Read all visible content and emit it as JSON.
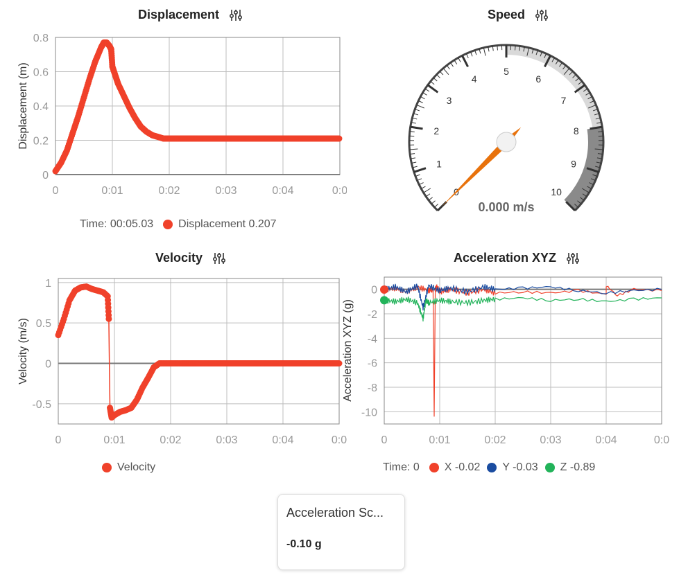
{
  "displacement": {
    "title": "Displacement",
    "legend_time": "Time: 00:05.03",
    "legend_series": "Displacement 0.207",
    "color": "#f0412a",
    "chart_data": {
      "type": "scatter",
      "ylabel": "Displacement (m)",
      "xlim": [
        0,
        0.05
      ],
      "ylim": [
        0,
        0.8
      ],
      "xticks": [
        "0",
        "0:01",
        "0:02",
        "0:03",
        "0:04",
        "0:0"
      ],
      "yticks": [
        "0",
        "0.2",
        "0.4",
        "0.6",
        "0.8"
      ],
      "grid": true,
      "x": [
        0,
        0.001,
        0.002,
        0.003,
        0.004,
        0.005,
        0.006,
        0.007,
        0.008,
        0.0085,
        0.009,
        0.0095,
        0.0098,
        0.01,
        0.0105,
        0.011,
        0.012,
        0.013,
        0.014,
        0.015,
        0.016,
        0.017,
        0.018,
        0.019,
        0.02,
        0.021,
        0.022,
        0.025,
        0.03,
        0.035,
        0.04,
        0.045,
        0.05
      ],
      "y": [
        0.02,
        0.07,
        0.14,
        0.24,
        0.34,
        0.45,
        0.56,
        0.66,
        0.74,
        0.77,
        0.77,
        0.75,
        0.73,
        0.63,
        0.58,
        0.53,
        0.46,
        0.39,
        0.33,
        0.28,
        0.25,
        0.23,
        0.22,
        0.21,
        0.21,
        0.21,
        0.21,
        0.21,
        0.21,
        0.21,
        0.21,
        0.21,
        0.21
      ]
    }
  },
  "speed": {
    "title": "Speed",
    "value_text": "0.000 m/s",
    "value": 0,
    "min": 0,
    "max": 10,
    "tick_labels": [
      "0",
      "1",
      "2",
      "3",
      "4",
      "5",
      "6",
      "7",
      "8",
      "9",
      "10"
    ],
    "needle_color": "#e8720c",
    "bands": [
      {
        "from": 5,
        "to": 8,
        "color": "#d9d9d9"
      },
      {
        "from": 8,
        "to": 10,
        "color": "#8a8a8a"
      }
    ]
  },
  "velocity": {
    "title": "Velocity",
    "legend_series": "Velocity",
    "color": "#f0412a",
    "chart_data": {
      "type": "scatter",
      "ylabel": "Velocity (m/s)",
      "xlim": [
        0,
        0.05
      ],
      "ylim": [
        -0.75,
        1.05
      ],
      "xticks": [
        "0",
        "0:01",
        "0:02",
        "0:03",
        "0:04",
        "0:0"
      ],
      "yticks": [
        "-0.5",
        "0",
        "0.5",
        "1"
      ],
      "grid": true,
      "x": [
        0,
        0.001,
        0.002,
        0.003,
        0.004,
        0.005,
        0.006,
        0.007,
        0.008,
        0.0088,
        0.009,
        0.0092,
        0.0095,
        0.01,
        0.011,
        0.012,
        0.013,
        0.014,
        0.015,
        0.016,
        0.017,
        0.018,
        0.019,
        0.02,
        0.021,
        0.022,
        0.025,
        0.03,
        0.035,
        0.04,
        0.045,
        0.05
      ],
      "y": [
        0.35,
        0.55,
        0.78,
        0.9,
        0.94,
        0.95,
        0.92,
        0.9,
        0.88,
        0.83,
        0.55,
        -0.55,
        -0.67,
        -0.64,
        -0.6,
        -0.58,
        -0.55,
        -0.45,
        -0.3,
        -0.18,
        -0.05,
        0,
        0,
        0,
        0,
        0,
        0,
        0,
        0,
        0,
        0,
        0
      ]
    }
  },
  "acceleration": {
    "title": "Acceleration XYZ",
    "legend_time": "Time: 0",
    "legend_x": "X -0.02",
    "legend_y": "Y -0.03",
    "legend_z": "Z -0.89",
    "chart_data": {
      "type": "line",
      "ylabel": "Acceleration XYZ (g)",
      "xlim": [
        0,
        0.05
      ],
      "ylim": [
        -11,
        1
      ],
      "xticks": [
        "0",
        "0:01",
        "0:02",
        "0:03",
        "0:04",
        "0:0"
      ],
      "yticks": [
        "0",
        "-2",
        "-4",
        "-6",
        "-8",
        "-10"
      ],
      "grid": true,
      "series": [
        {
          "name": "X",
          "color": "#f0412a",
          "x": [
            0,
            0.002,
            0.004,
            0.006,
            0.008,
            0.0088,
            0.009,
            0.0092,
            0.0095,
            0.01,
            0.012,
            0.015,
            0.018,
            0.02,
            0.025,
            0.03,
            0.035,
            0.04,
            0.04,
            0.042,
            0.045,
            0.05
          ],
          "y": [
            -0.02,
            0.1,
            -0.2,
            0.2,
            -0.1,
            0,
            -10.4,
            0,
            0.2,
            -0.2,
            0,
            -0.3,
            0,
            -0.3,
            -0.2,
            -0.3,
            -0.1,
            -0.4,
            0.3,
            -0.5,
            0,
            -0.1
          ]
        },
        {
          "name": "Y",
          "color": "#1a4ca0",
          "x": [
            0,
            0.002,
            0.004,
            0.006,
            0.007,
            0.008,
            0.01,
            0.012,
            0.015,
            0.018,
            0.02,
            0.025,
            0.03,
            0.035,
            0.04,
            0.045,
            0.05
          ],
          "y": [
            -0.03,
            0.2,
            -0.2,
            0.3,
            -1.5,
            0.3,
            -0.1,
            0.1,
            -0.2,
            0.2,
            0,
            0.1,
            0.2,
            -0.1,
            -0.3,
            -0.1,
            0
          ]
        },
        {
          "name": "Z",
          "color": "#22b35a",
          "x": [
            0,
            0.002,
            0.004,
            0.006,
            0.007,
            0.0075,
            0.008,
            0.01,
            0.012,
            0.015,
            0.018,
            0.02,
            0.025,
            0.03,
            0.035,
            0.04,
            0.045,
            0.05
          ],
          "y": [
            -0.89,
            -1.0,
            -0.8,
            -1.1,
            -2.4,
            -0.9,
            -1.1,
            -0.9,
            -1.0,
            -1.1,
            -0.9,
            -0.8,
            -0.7,
            -0.9,
            -0.8,
            -1.0,
            -0.8,
            -0.7
          ]
        }
      ]
    }
  },
  "card": {
    "title": "Acceleration Sc...",
    "value": "-0.10 g"
  }
}
